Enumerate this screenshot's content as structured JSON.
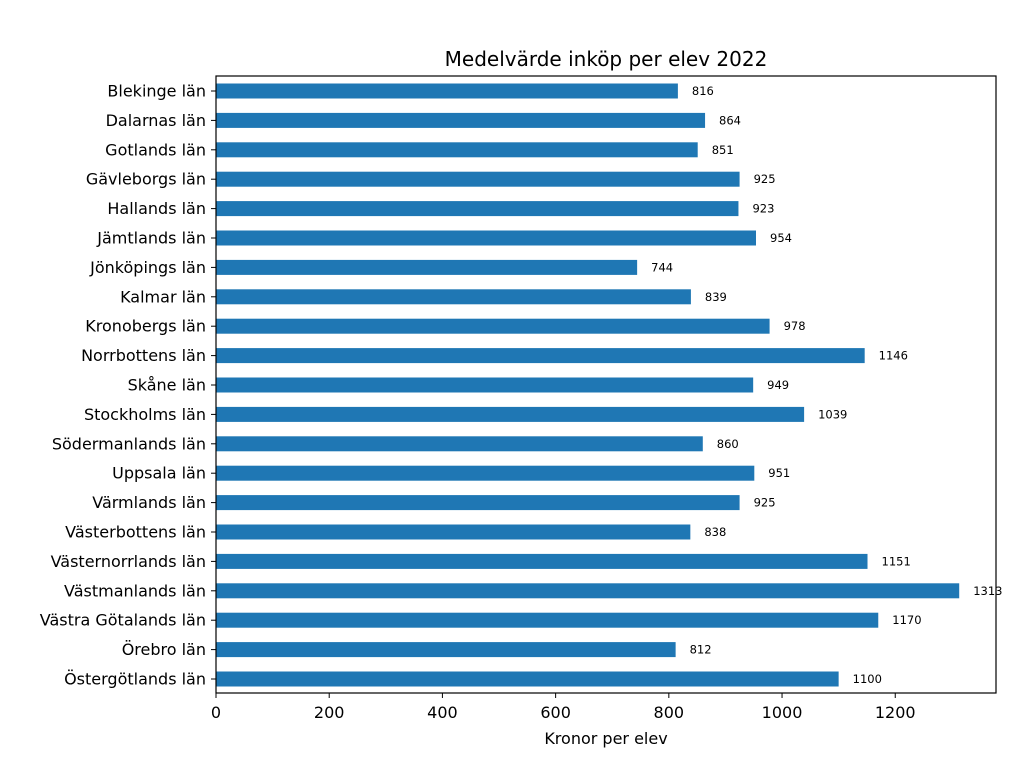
{
  "chart_data": {
    "type": "bar",
    "orientation": "horizontal",
    "title": "Medelvärde inköp per elev 2022",
    "xlabel": "Kronor per elev",
    "ylabel": "",
    "xlim": [
      0,
      1378
    ],
    "xticks": [
      0,
      200,
      400,
      600,
      800,
      1000,
      1200
    ],
    "grid": false,
    "bar_color": "#1f77b4",
    "categories": [
      "Blekinge län",
      "Dalarnas län",
      "Gotlands län",
      "Gävleborgs län",
      "Hallands län",
      "Jämtlands län",
      "Jönköpings län",
      "Kalmar län",
      "Kronobergs län",
      "Norrbottens län",
      "Skåne län",
      "Stockholms län",
      "Södermanlands län",
      "Uppsala län",
      "Värmlands län",
      "Västerbottens län",
      "Västernorrlands län",
      "Västmanlands län",
      "Västra Götalands län",
      "Örebro län",
      "Östergötlands län"
    ],
    "values": [
      816,
      864,
      851,
      925,
      923,
      954,
      744,
      839,
      978,
      1146,
      949,
      1039,
      860,
      951,
      925,
      838,
      1151,
      1313,
      1170,
      812,
      1100
    ]
  }
}
